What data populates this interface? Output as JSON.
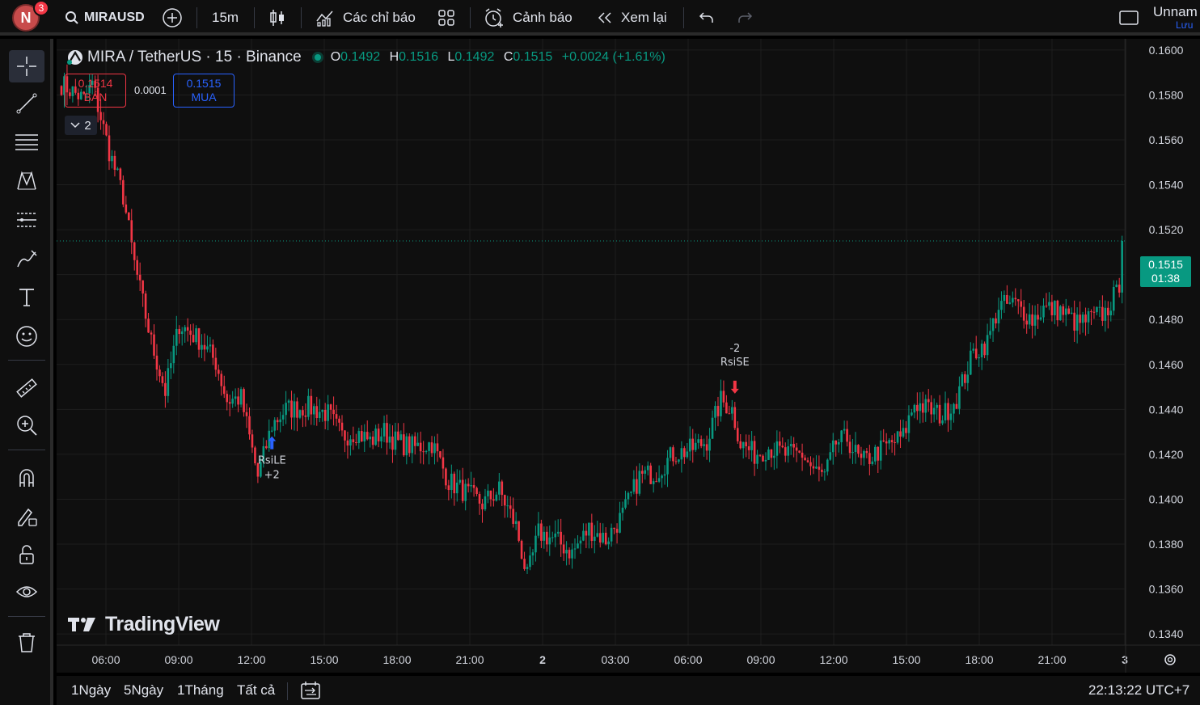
{
  "topbar": {
    "avatar_letter": "N",
    "notification_count": "3",
    "symbol": "MIRAUSD",
    "interval": "15m",
    "indicators_label": "Các chỉ báo",
    "alerts_label": "Cảnh báo",
    "replay_label": "Xem lại",
    "layout_name": "Unnam",
    "save_label": "Lưu"
  },
  "legend": {
    "title": "MIRA / TetherUS · 15 · Binance",
    "o_key": "O",
    "o_val": "0.1492",
    "h_key": "H",
    "h_val": "0.1516",
    "l_key": "L",
    "l_val": "0.1492",
    "c_key": "C",
    "c_val": "0.1515",
    "change": "+0.0024 (+1.61%)"
  },
  "trade": {
    "sell_price": "0.1514",
    "sell_label": "BÁN",
    "spread": "0.0001",
    "buy_price": "0.1515",
    "buy_label": "MUA",
    "collapse_count": "2"
  },
  "price_tag": {
    "price": "0.1515",
    "countdown": "01:38"
  },
  "watermark": "TradingView",
  "bottombar": {
    "ranges": [
      "1Ngày",
      "5Ngày",
      "1Tháng",
      "Tất cả"
    ],
    "clock": "22:13:22 UTC+7"
  },
  "colors": {
    "up": "#089981",
    "down": "#f23645",
    "accent": "#2962ff"
  },
  "chart_data": {
    "type": "candlestick",
    "symbol": "MIRA / TetherUS",
    "interval": "15",
    "exchange": "Binance",
    "y_ticks": [
      "0.1600",
      "0.1580",
      "0.1560",
      "0.1540",
      "0.1520",
      "0.1500",
      "0.1480",
      "0.1460",
      "0.1440",
      "0.1420",
      "0.1400",
      "0.1380",
      "0.1360",
      "0.1340"
    ],
    "x_ticks": [
      "06:00",
      "09:00",
      "12:00",
      "15:00",
      "18:00",
      "21:00",
      "2",
      "03:00",
      "06:00",
      "09:00",
      "12:00",
      "15:00",
      "18:00",
      "21:00",
      "3"
    ],
    "ylim": [
      0.1335,
      0.1605
    ],
    "last_price": 0.1515,
    "grid": true,
    "anchors": [
      [
        0,
        0.1585
      ],
      [
        8,
        0.1578
      ],
      [
        11,
        0.1585
      ],
      [
        14,
        0.157
      ],
      [
        17,
        0.1555
      ],
      [
        22,
        0.1535
      ],
      [
        26,
        0.1505
      ],
      [
        32,
        0.147
      ],
      [
        37,
        0.1448
      ],
      [
        42,
        0.1478
      ],
      [
        50,
        0.147
      ],
      [
        55,
        0.1461
      ],
      [
        59,
        0.1444
      ],
      [
        64,
        0.1445
      ],
      [
        70,
        0.141
      ],
      [
        75,
        0.1433
      ],
      [
        80,
        0.144
      ],
      [
        88,
        0.1441
      ],
      [
        95,
        0.1438
      ],
      [
        100,
        0.1428
      ],
      [
        105,
        0.143
      ],
      [
        110,
        0.1426
      ],
      [
        115,
        0.143
      ],
      [
        120,
        0.1425
      ],
      [
        126,
        0.1423
      ],
      [
        132,
        0.1425
      ],
      [
        138,
        0.1408
      ],
      [
        144,
        0.1403
      ],
      [
        150,
        0.1398
      ],
      [
        156,
        0.1404
      ],
      [
        162,
        0.1388
      ],
      [
        166,
        0.1365
      ],
      [
        170,
        0.1385
      ],
      [
        176,
        0.1382
      ],
      [
        182,
        0.1376
      ],
      [
        188,
        0.1387
      ],
      [
        194,
        0.1382
      ],
      [
        200,
        0.1393
      ],
      [
        206,
        0.141
      ],
      [
        212,
        0.1412
      ],
      [
        218,
        0.142
      ],
      [
        224,
        0.1422
      ],
      [
        230,
        0.1426
      ],
      [
        235,
        0.1444
      ],
      [
        239,
        0.144
      ],
      [
        242,
        0.1425
      ],
      [
        247,
        0.142
      ],
      [
        252,
        0.1423
      ],
      [
        258,
        0.142
      ],
      [
        264,
        0.142
      ],
      [
        268,
        0.1413
      ],
      [
        272,
        0.141
      ],
      [
        276,
        0.1425
      ],
      [
        280,
        0.1427
      ],
      [
        285,
        0.1416
      ],
      [
        292,
        0.1422
      ],
      [
        300,
        0.1428
      ],
      [
        304,
        0.1443
      ],
      [
        309,
        0.144
      ],
      [
        314,
        0.1437
      ],
      [
        319,
        0.1445
      ],
      [
        325,
        0.1465
      ],
      [
        330,
        0.147
      ],
      [
        334,
        0.1486
      ],
      [
        340,
        0.1487
      ],
      [
        346,
        0.148
      ],
      [
        350,
        0.1485
      ],
      [
        356,
        0.1484
      ],
      [
        362,
        0.1478
      ],
      [
        366,
        0.148
      ],
      [
        372,
        0.1483
      ],
      [
        375,
        0.149
      ],
      [
        377,
        0.1492
      ],
      [
        378,
        0.1515
      ]
    ],
    "markers": [
      {
        "label": "RsiLE",
        "qty": "+2",
        "side": "buy",
        "bar_index": 75,
        "price": 0.1428
      },
      {
        "label": "RsiSE",
        "qty": "-2",
        "side": "sell",
        "bar_index": 240,
        "price": 0.1447
      }
    ]
  }
}
